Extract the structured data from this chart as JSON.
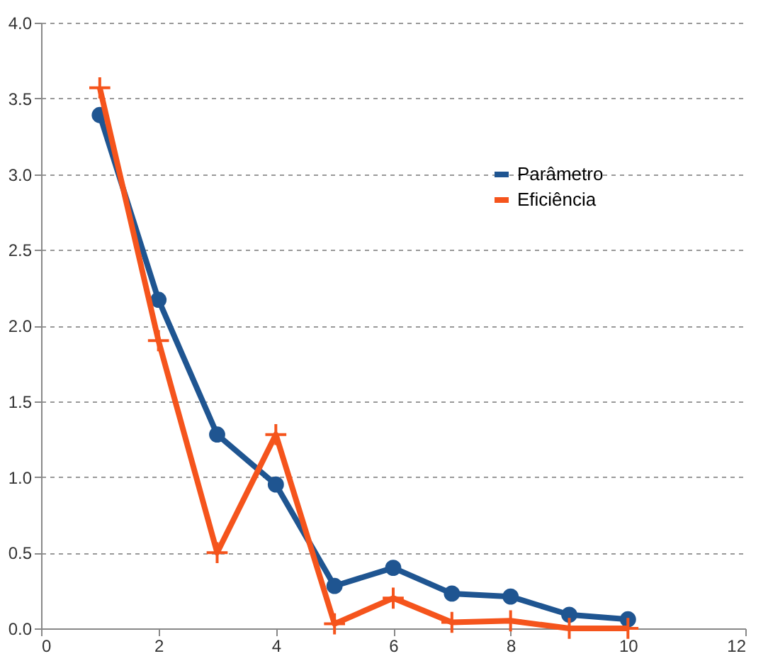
{
  "chart_data": {
    "type": "line",
    "x": [
      1,
      2,
      3,
      4,
      5,
      6,
      7,
      8,
      9,
      10
    ],
    "series": [
      {
        "name": "Parâmetro",
        "color": "#1f5591",
        "marker": "circle",
        "values": [
          3.39,
          2.17,
          1.28,
          0.95,
          0.28,
          0.4,
          0.23,
          0.21,
          0.09,
          0.06
        ]
      },
      {
        "name": "Eficiência",
        "color": "#f5541c",
        "marker": "cross",
        "values": [
          3.57,
          1.9,
          0.5,
          1.28,
          0.03,
          0.2,
          0.04,
          0.05,
          0.0,
          0.0
        ]
      }
    ],
    "xlim": [
      0,
      12
    ],
    "xticks": [
      0,
      2,
      4,
      6,
      8,
      10,
      12
    ],
    "ylim": [
      0,
      4
    ],
    "yticks": [
      {
        "value": 0,
        "label": "0.0"
      },
      {
        "value": 0.5,
        "label": "0.5"
      },
      {
        "value": 1,
        "label": "1.0"
      },
      {
        "value": 1.5,
        "label": "1.5"
      },
      {
        "value": 2,
        "label": "2.0"
      },
      {
        "value": 2.5,
        "label": "2.5"
      },
      {
        "value": 3,
        "label": "3.0"
      },
      {
        "value": 3.5,
        "label": "3.5"
      },
      {
        "value": 4,
        "label": "4.0"
      }
    ],
    "grid": "y",
    "legend": "top right",
    "line_style": "solid"
  }
}
